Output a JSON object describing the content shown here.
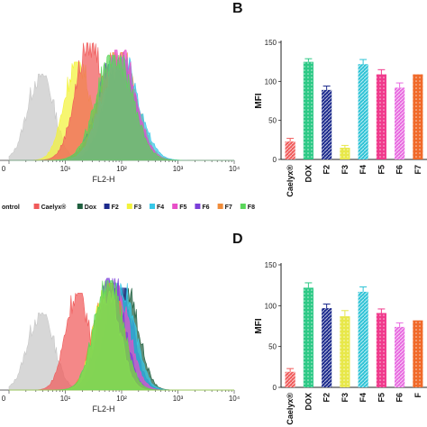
{
  "panel_labels": {
    "B": "B",
    "D": "D"
  },
  "legend": [
    {
      "label": "ontrol",
      "color": "#c8c8c8"
    },
    {
      "label": "Caelyx®",
      "color": "#f05a5a"
    },
    {
      "label": "Dox",
      "color": "#1f5f3f"
    },
    {
      "label": "F2",
      "color": "#1c2a8c"
    },
    {
      "label": "F3",
      "color": "#f3f33a"
    },
    {
      "label": "F4",
      "color": "#38c8e8"
    },
    {
      "label": "F5",
      "color": "#e84fc8"
    },
    {
      "label": "F6",
      "color": "#7b3fd8"
    },
    {
      "label": "F7",
      "color": "#f08c3a"
    },
    {
      "label": "F8",
      "color": "#5ad65a"
    }
  ],
  "chart_data": [
    {
      "type": "area",
      "panel": "top-left",
      "xlabel": "FL2-H",
      "x_ticks": [
        "0",
        "10¹",
        "10²",
        "10³",
        "10⁴"
      ],
      "x_scale": "log",
      "series": [
        {
          "name": "ontrol",
          "color": "#c8c8c8",
          "peak_log": 0.55,
          "width": 0.22,
          "height": 0.72
        },
        {
          "name": "F3",
          "color": "#f3f33a",
          "peak_log": 1.2,
          "width": 0.22,
          "height": 0.82
        },
        {
          "name": "Caelyx®",
          "color": "#f05a5a",
          "peak_log": 1.42,
          "width": 0.24,
          "height": 0.98
        },
        {
          "name": "F2",
          "color": "#1c2a8c",
          "peak_log": 1.85,
          "width": 0.28,
          "height": 0.8
        },
        {
          "name": "F6",
          "color": "#7b3fd8",
          "peak_log": 1.88,
          "width": 0.3,
          "height": 0.84
        },
        {
          "name": "F7",
          "color": "#f08c3a",
          "peak_log": 1.9,
          "width": 0.3,
          "height": 0.9
        },
        {
          "name": "Dox",
          "color": "#1f5f3f",
          "peak_log": 1.95,
          "width": 0.26,
          "height": 0.78
        },
        {
          "name": "F4",
          "color": "#38c8e8",
          "peak_log": 1.95,
          "width": 0.3,
          "height": 0.86
        },
        {
          "name": "F5",
          "color": "#e84fc8",
          "peak_log": 1.92,
          "width": 0.28,
          "height": 0.92
        },
        {
          "name": "F8",
          "color": "#5ad65a",
          "peak_log": 1.85,
          "width": 0.3,
          "height": 0.88
        }
      ]
    },
    {
      "type": "bar",
      "panel": "B",
      "ylabel": "MFI",
      "ylim": [
        0,
        150
      ],
      "y_ticks": [
        0,
        50,
        100,
        150
      ],
      "categories": [
        "Caelyx®",
        "DOX",
        "F2",
        "F3",
        "F4",
        "F5",
        "F6",
        "F7"
      ],
      "values": [
        23,
        125,
        89,
        15,
        122,
        109,
        92,
        109
      ],
      "errors": [
        4,
        4,
        5,
        3,
        6,
        6,
        6,
        0
      ],
      "colors": [
        "#f05a5a",
        "#2ec986",
        "#1c2a8c",
        "#e8e84a",
        "#2ec3d6",
        "#f03a8c",
        "#e86ae0",
        "#f06a2a"
      ]
    },
    {
      "type": "area",
      "panel": "bottom-left",
      "xlabel": "FL2-H",
      "x_ticks": [
        "0",
        "10¹",
        "10²",
        "10³",
        "10⁴"
      ],
      "x_scale": "log",
      "series": [
        {
          "name": "ontrol",
          "color": "#c8c8c8",
          "peak_log": 0.55,
          "width": 0.22,
          "height": 0.62
        },
        {
          "name": "Caelyx®",
          "color": "#f05a5a",
          "peak_log": 1.2,
          "width": 0.2,
          "height": 0.78
        },
        {
          "name": "Dox",
          "color": "#1f5f3f",
          "peak_log": 2.05,
          "width": 0.22,
          "height": 0.82
        },
        {
          "name": "F2",
          "color": "#1c2a8c",
          "peak_log": 1.95,
          "width": 0.22,
          "height": 0.82
        },
        {
          "name": "F4",
          "color": "#38c8e8",
          "peak_log": 1.95,
          "width": 0.24,
          "height": 0.86
        },
        {
          "name": "F5",
          "color": "#e84fc8",
          "peak_log": 1.85,
          "width": 0.24,
          "height": 0.84
        },
        {
          "name": "F6",
          "color": "#7b3fd8",
          "peak_log": 1.8,
          "width": 0.22,
          "height": 0.9
        },
        {
          "name": "F7",
          "color": "#f08c3a",
          "peak_log": 1.75,
          "width": 0.24,
          "height": 0.86
        },
        {
          "name": "F3",
          "color": "#f3f33a",
          "peak_log": 1.72,
          "width": 0.22,
          "height": 0.8
        },
        {
          "name": "F8",
          "color": "#5ad65a",
          "peak_log": 1.75,
          "width": 0.24,
          "height": 0.88
        }
      ]
    },
    {
      "type": "bar",
      "panel": "D",
      "ylabel": "MFI",
      "ylim": [
        0,
        150
      ],
      "y_ticks": [
        0,
        50,
        100,
        150
      ],
      "categories": [
        "Caelyx®",
        "DOX",
        "F2",
        "F3",
        "F4",
        "F5",
        "F6",
        "F"
      ],
      "values": [
        19,
        122,
        97,
        87,
        117,
        91,
        74,
        82
      ],
      "errors": [
        4,
        6,
        5,
        7,
        6,
        5,
        5,
        0
      ],
      "colors": [
        "#f05a5a",
        "#2ec986",
        "#1c2a8c",
        "#e8e84a",
        "#2ec3d6",
        "#f03a8c",
        "#e86ae0",
        "#f06a2a"
      ]
    }
  ]
}
